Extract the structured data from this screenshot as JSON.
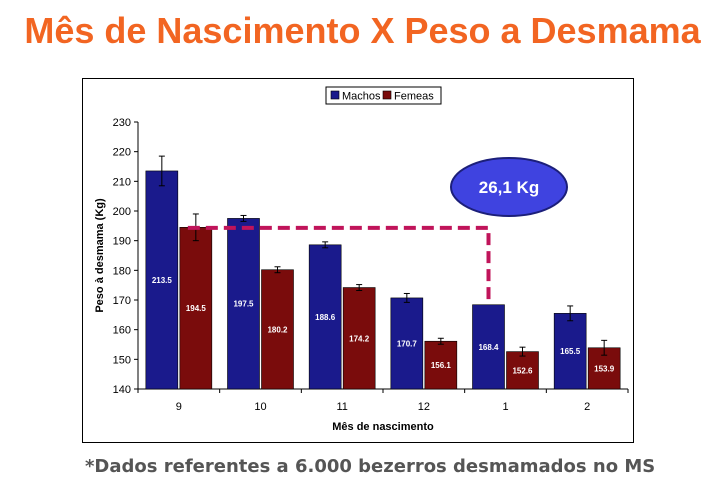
{
  "page": {
    "title": "Mês de Nascimento X Peso a Desmama",
    "footnote": "*Dados referentes a 6.000 bezerros desmamados no MS"
  },
  "colors": {
    "title": "#f26522",
    "machos": "#1a1a8c",
    "femeas": "#7a0c0c",
    "annotation_fill": "#3f43e0",
    "dashed_line": "#c0145a"
  },
  "chart_data": {
    "type": "bar",
    "xlabel": "Mês de nascimento",
    "ylabel": "Peso à desmama (Kg)",
    "ylim": [
      140,
      230
    ],
    "yticks": [
      140,
      150,
      160,
      170,
      180,
      190,
      200,
      210,
      220,
      230
    ],
    "categories": [
      "9",
      "10",
      "11",
      "12",
      "1",
      "2"
    ],
    "series": [
      {
        "name": "Machos",
        "values": [
          213.5,
          197.5,
          188.6,
          170.7,
          168.4,
          165.5
        ],
        "labels": [
          "213.5",
          "197.5",
          "188.6",
          "170.7",
          "168.4",
          "165.5"
        ],
        "error": [
          5,
          1,
          1,
          1.5,
          0,
          2.5
        ]
      },
      {
        "name": "Femeas",
        "values": [
          194.5,
          180.2,
          174.2,
          156.1,
          152.6,
          153.9
        ],
        "labels": [
          "194.5",
          "180.2",
          "174.2",
          "156.1",
          "152.6",
          "153.9"
        ],
        "error": [
          4.5,
          1,
          1,
          1,
          1.5,
          2.5
        ]
      }
    ],
    "legend": "top",
    "grid": false,
    "annotation": {
      "text": "26,1 Kg",
      "level": 195,
      "from_category": "9",
      "to_category": "1"
    }
  }
}
